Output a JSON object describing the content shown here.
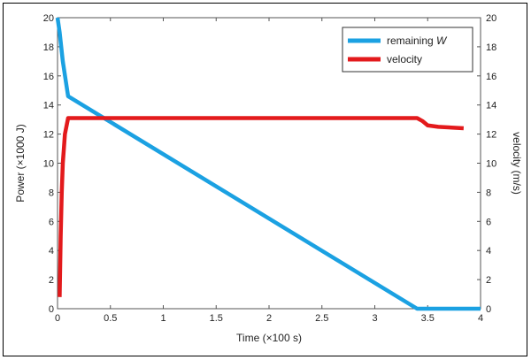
{
  "chart_data": {
    "type": "line",
    "xlabel": "Time (×100 s)",
    "ylabel_left": "Power (×1000 J)",
    "ylabel_right": "velocity (m/s)",
    "xlim": [
      0,
      4
    ],
    "ylim_left": [
      0,
      20
    ],
    "ylim_right": [
      0,
      20
    ],
    "x_ticks": [
      "0",
      "0.5",
      "1",
      "1.5",
      "2",
      "2.5",
      "3",
      "3.5",
      "4"
    ],
    "y_ticks_left": [
      "0",
      "2",
      "4",
      "6",
      "8",
      "10",
      "12",
      "14",
      "16",
      "18",
      "20"
    ],
    "y_ticks_right": [
      "0",
      "2",
      "4",
      "6",
      "8",
      "10",
      "12",
      "14",
      "16",
      "18",
      "20"
    ],
    "grid": false,
    "legend_position": "top-right",
    "series": [
      {
        "name": "remaining W",
        "axis": "left",
        "color": "#1ba1e2",
        "points": [
          [
            0,
            20
          ],
          [
            0.02,
            19
          ],
          [
            0.05,
            17
          ],
          [
            0.1,
            14.6
          ],
          [
            3.4,
            0
          ],
          [
            4,
            0
          ]
        ]
      },
      {
        "name": "velocity",
        "axis": "right",
        "color": "#e31a1c",
        "points": [
          [
            0.02,
            0.8
          ],
          [
            0.03,
            5
          ],
          [
            0.04,
            8
          ],
          [
            0.05,
            10
          ],
          [
            0.07,
            12
          ],
          [
            0.1,
            13.1
          ],
          [
            3.4,
            13.1
          ],
          [
            3.45,
            12.9
          ],
          [
            3.5,
            12.6
          ],
          [
            3.6,
            12.5
          ],
          [
            3.84,
            12.4
          ]
        ]
      }
    ]
  },
  "legend": {
    "items": [
      {
        "label": "remaining ",
        "label_italic": "W"
      },
      {
        "label": "velocity"
      }
    ]
  }
}
